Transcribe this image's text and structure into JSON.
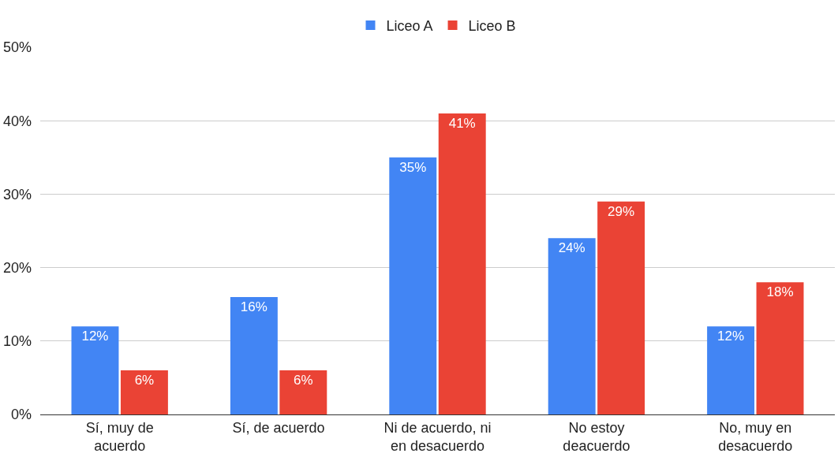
{
  "chart_data": {
    "type": "bar",
    "categories": [
      "Sí, muy de acuerdo",
      "Sí, de acuerdo",
      "Ni de acuerdo, ni en desacuerdo",
      "No estoy deacuerdo",
      "No, muy en desacuerdo"
    ],
    "series": [
      {
        "name": "Liceo A",
        "color": "#4285f4",
        "values": [
          12,
          16,
          35,
          24,
          12
        ],
        "value_labels": [
          "12%",
          "16%",
          "35%",
          "24%",
          "12%"
        ]
      },
      {
        "name": "Liceo B",
        "color": "#ea4335",
        "values": [
          6,
          6,
          41,
          29,
          18
        ],
        "value_labels": [
          "6%",
          "6%",
          "41%",
          "29%",
          "18%"
        ]
      }
    ],
    "ylim": [
      0,
      50
    ],
    "yticks": [
      {
        "value": 0,
        "label": "0%"
      },
      {
        "value": 10,
        "label": "10%"
      },
      {
        "value": 20,
        "label": "20%"
      },
      {
        "value": 30,
        "label": "30%"
      },
      {
        "value": 40,
        "label": "40%"
      },
      {
        "value": 50,
        "label": "50%"
      }
    ],
    "grid": "y",
    "legend": "top"
  }
}
